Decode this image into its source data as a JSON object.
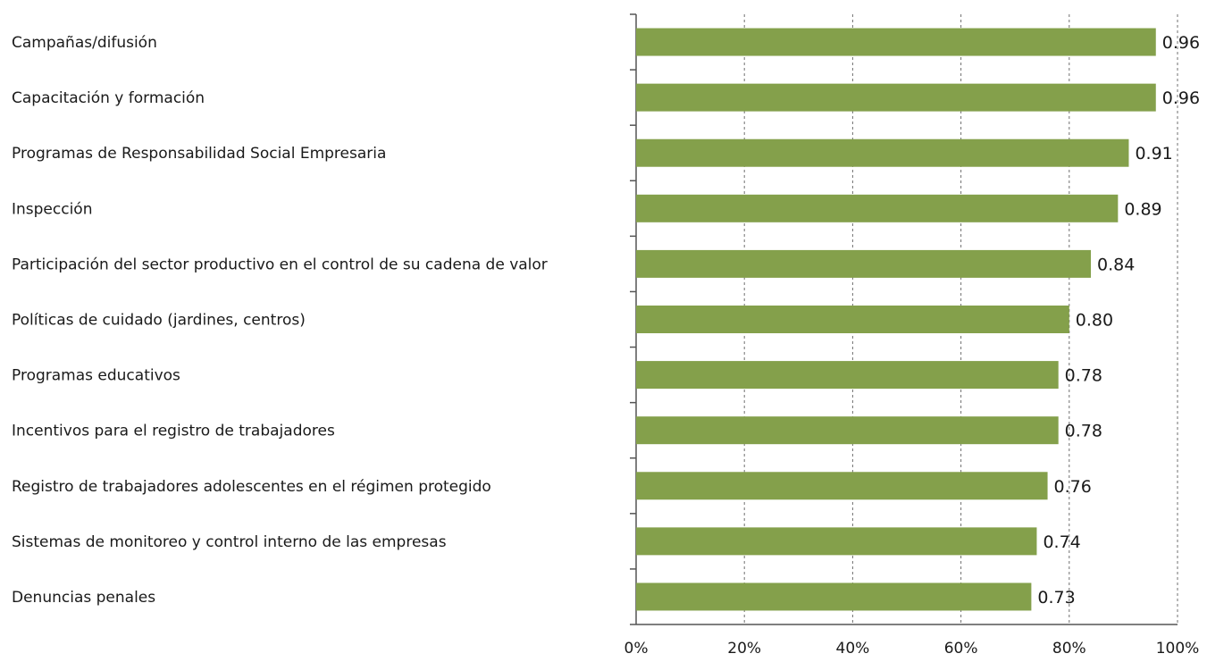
{
  "chart_data": {
    "type": "bar",
    "orientation": "horizontal",
    "categories": [
      "Campañas/difusión",
      "Capacitación y formación",
      "Programas de Responsabilidad Social Empresaria",
      "Inspección",
      "Participación del sector productivo en el control de su cadena de valor",
      "Políticas de cuidado (jardines, centros)",
      "Programas educativos",
      "Incentivos para el registro de trabajadores",
      "Registro de trabajadores adolescentes en el régimen protegido",
      "Sistemas de monitoreo y control interno de las empresas",
      "Denuncias penales"
    ],
    "values": [
      0.96,
      0.96,
      0.91,
      0.89,
      0.84,
      0.8,
      0.78,
      0.78,
      0.76,
      0.74,
      0.73
    ],
    "data_labels": [
      "0.96",
      "0.96",
      "0.91",
      "0.89",
      "0.84",
      "0.80",
      "0.78",
      "0.78",
      "0.76",
      "0.74",
      "0.73"
    ],
    "xticks": [
      "0%",
      "20%",
      "40%",
      "60%",
      "80%",
      "100%"
    ],
    "xlim": [
      0,
      1
    ],
    "title": "",
    "xlabel": "",
    "ylabel": "",
    "grid": "vertical dashed",
    "legend": "none",
    "bar_color": "#84A04B"
  }
}
